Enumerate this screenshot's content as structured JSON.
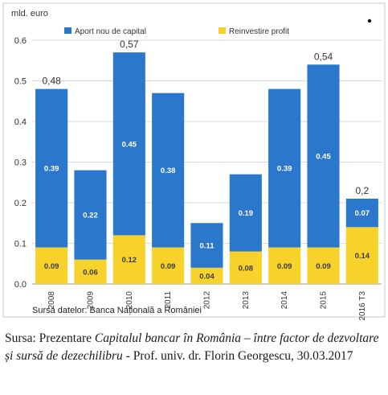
{
  "chart_data": {
    "type": "bar",
    "stacked": true,
    "title": "",
    "ylabel": "mld. euro",
    "ylim": [
      0,
      0.6
    ],
    "yticks": [
      "0.0",
      "0.1",
      "0.2",
      "0.3",
      "0.4",
      "0.5",
      "0.6"
    ],
    "categories": [
      "2008",
      "2009",
      "2010",
      "2011",
      "2012",
      "2013",
      "2014",
      "2015",
      "2016 T3"
    ],
    "series": [
      {
        "name": "Reinvestire profit",
        "color": "#f6d22a",
        "values": [
          0.09,
          0.06,
          0.12,
          0.09,
          0.04,
          0.08,
          0.09,
          0.09,
          0.14
        ]
      },
      {
        "name": "Aport nou de capital",
        "color": "#2a77cc",
        "values": [
          0.39,
          0.22,
          0.45,
          0.38,
          0.11,
          0.19,
          0.39,
          0.45,
          0.07
        ]
      }
    ],
    "segment_labels": {
      "Reinvestire profit": [
        "0.09",
        "0.06",
        "0.12",
        "0.09",
        "0.04",
        "0.08",
        "0.09",
        "0.09",
        "0.14"
      ],
      "Aport nou de capital": [
        "0.39",
        "0.22",
        "0.45",
        "0.38",
        "0.11",
        "0.19",
        "0.39",
        "0.45",
        "0.07"
      ]
    },
    "total_labels": [
      {
        "category": "2008",
        "text": "0,48"
      },
      {
        "category": "2010",
        "text": "0,57"
      },
      {
        "category": "2015",
        "text": "0,54"
      },
      {
        "category": "2016 T3",
        "text": "0,2"
      }
    ],
    "legend_position": "top",
    "grid": true,
    "footnote": "Sursa datelor: Banca Națională a României"
  },
  "caption": {
    "prefix": "Sursa: Prezentare ",
    "title_italic": "Capitalul bancar în România – între factor de dezvoltare și sursă de dezechilibru",
    "suffix": "  - Prof. univ. dr. Florin Georgescu, 30.03.2017"
  }
}
